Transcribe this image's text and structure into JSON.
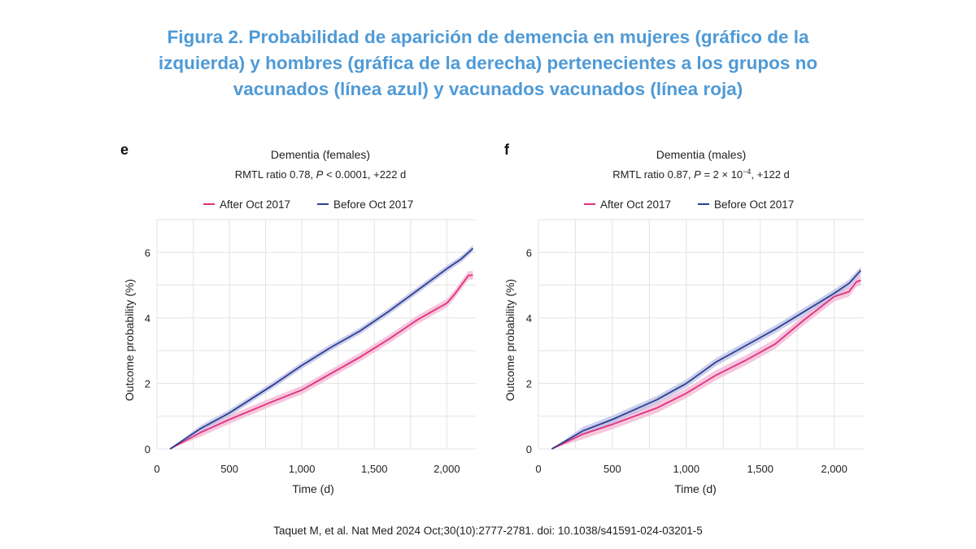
{
  "figure_title": {
    "line1": "Figura 2. Probabilidad de aparición de demencia en mujeres (gráfico de la",
    "line2": "izquierda)  y hombres (gráfica de la derecha)  pertenecientes a los grupos no",
    "line3": "vacunados (línea azul)  y vacunados  vacunados (línea roja)"
  },
  "citation": "Taquet  M,  et al. Nat Med 2024 Oct;30(10):2777-2781. doi: 10.1038/s41591-024-03201-5",
  "colors": {
    "after": "#e0307e",
    "after_band": "#f3b4d2",
    "before": "#2f3f8f",
    "before_band": "#b9bfe6",
    "grid": "#e3e3e3",
    "title": "#4f9ad6"
  },
  "chart_data": [
    {
      "type": "line",
      "panel_label": "e",
      "title": "Dementia (females)",
      "subtitle": {
        "prefix": "RMTL ratio 0.78, ",
        "p_label": "P",
        "p_value": " < 0.0001, +222 d",
        "p_exp": ""
      },
      "xlabel": "Time (d)",
      "ylabel": "Outcome probability (%)",
      "xlim": [
        0,
        2200
      ],
      "ylim": [
        0,
        7
      ],
      "xticks": [
        0,
        500,
        1000,
        1500,
        2000
      ],
      "xtick_labels": [
        "0",
        "500",
        "1,000",
        "1,500",
        "2,000"
      ],
      "yticks": [
        0,
        2,
        4,
        6
      ],
      "ytick_labels": [
        "0",
        "2",
        "4",
        "6"
      ],
      "grid": true,
      "legend_position": "top",
      "series": [
        {
          "name": "After Oct 2017",
          "key": "after",
          "ci_half_width": 0.13,
          "x": [
            90,
            300,
            500,
            800,
            1000,
            1200,
            1400,
            1600,
            1800,
            1900,
            2000,
            2050,
            2100,
            2150,
            2180
          ],
          "y": [
            0,
            0.5,
            0.9,
            1.45,
            1.8,
            2.3,
            2.8,
            3.35,
            3.95,
            4.2,
            4.45,
            4.7,
            5.0,
            5.3,
            5.3
          ]
        },
        {
          "name": "Before Oct 2017",
          "key": "before",
          "ci_half_width": 0.1,
          "x": [
            90,
            300,
            500,
            800,
            1000,
            1200,
            1400,
            1600,
            1800,
            2000,
            2100,
            2180
          ],
          "y": [
            0,
            0.62,
            1.1,
            1.95,
            2.55,
            3.1,
            3.6,
            4.2,
            4.85,
            5.5,
            5.8,
            6.12
          ]
        }
      ]
    },
    {
      "type": "line",
      "panel_label": "f",
      "title": "Dementia (males)",
      "subtitle": {
        "prefix": "RMTL ratio 0.87, ",
        "p_label": "P",
        "p_value": " = 2 × 10",
        "p_exp": "−4",
        "suffix": ", +122 d"
      },
      "xlabel": "Time (d)",
      "ylabel": "Outcome probability (%)",
      "xlim": [
        0,
        2200
      ],
      "ylim": [
        0,
        7
      ],
      "xticks": [
        0,
        500,
        1000,
        1500,
        2000
      ],
      "xtick_labels": [
        "0",
        "500",
        "1,000",
        "1,500",
        "2,000"
      ],
      "yticks": [
        0,
        2,
        4,
        6
      ],
      "ytick_labels": [
        "0",
        "2",
        "4",
        "6"
      ],
      "grid": true,
      "legend_position": "top",
      "series": [
        {
          "name": "After Oct 2017",
          "key": "after",
          "ci_half_width": 0.15,
          "x": [
            90,
            300,
            500,
            800,
            1000,
            1200,
            1400,
            1600,
            1800,
            1900,
            2000,
            2100,
            2150,
            2180
          ],
          "y": [
            0,
            0.45,
            0.75,
            1.25,
            1.7,
            2.25,
            2.7,
            3.2,
            3.95,
            4.3,
            4.65,
            4.8,
            5.1,
            5.15
          ]
        },
        {
          "name": "Before Oct 2017",
          "key": "before",
          "ci_half_width": 0.12,
          "x": [
            90,
            300,
            500,
            800,
            1000,
            1200,
            1400,
            1600,
            1800,
            2000,
            2100,
            2180
          ],
          "y": [
            0,
            0.55,
            0.9,
            1.5,
            2.0,
            2.65,
            3.15,
            3.65,
            4.2,
            4.75,
            5.05,
            5.45
          ]
        }
      ]
    }
  ]
}
